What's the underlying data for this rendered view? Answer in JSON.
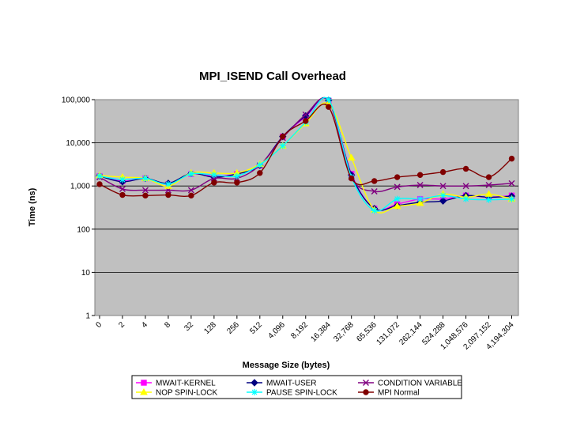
{
  "chart_data": {
    "type": "line",
    "title": "MPI_ISEND Call Overhead",
    "xlabel": "Message Size (bytes)",
    "ylabel": "Time (ns)",
    "y_scale": "log",
    "ylim": [
      1,
      100000
    ],
    "y_ticks": [
      "1",
      "10",
      "100",
      "1,000",
      "10,000",
      "100,000"
    ],
    "grid": "horizontal",
    "plot_background": "#c0c0c0",
    "legend_position": "bottom",
    "categories": [
      "0",
      "2",
      "4",
      "8",
      "32",
      "128",
      "256",
      "512",
      "4,096",
      "8,192",
      "16,384",
      "32,768",
      "65,536",
      "131,072",
      "262,144",
      "524,288",
      "1,048,576",
      "2,097,152",
      "4,194,304"
    ],
    "series": [
      {
        "name": "MWAIT-KERNEL",
        "color": "#ff00ff",
        "marker": "square",
        "values": [
          1700,
          1300,
          1500,
          1100,
          1900,
          1700,
          1900,
          3000,
          14000,
          40000,
          95000,
          1900,
          300,
          380,
          500,
          500,
          600,
          550,
          600
        ]
      },
      {
        "name": "MWAIT-USER",
        "color": "#000080",
        "marker": "diamond",
        "values": [
          1700,
          1250,
          1500,
          1150,
          1950,
          1600,
          1900,
          3000,
          14000,
          42000,
          96000,
          1800,
          300,
          350,
          420,
          450,
          600,
          550,
          580
        ]
      },
      {
        "name": "CONDITION VARIABLE",
        "color": "#800080",
        "marker": "x",
        "values": [
          1600,
          850,
          800,
          800,
          800,
          1500,
          1500,
          3000,
          13000,
          45000,
          92000,
          1600,
          750,
          950,
          1050,
          1000,
          1000,
          1050,
          1150
        ]
      },
      {
        "name": "NOP SPIN-LOCK",
        "color": "#ffff00",
        "marker": "triangle",
        "values": [
          1750,
          1600,
          1500,
          1000,
          2000,
          2000,
          2000,
          3200,
          8500,
          28000,
          80000,
          4500,
          280,
          340,
          400,
          650,
          550,
          650,
          500
        ]
      },
      {
        "name": "PAUSE SPIN-LOCK",
        "color": "#00ffff",
        "marker": "star",
        "values": [
          1700,
          1400,
          1500,
          1100,
          1900,
          1800,
          1700,
          3100,
          8500,
          30000,
          100000,
          1600,
          270,
          500,
          500,
          600,
          500,
          480,
          500
        ]
      },
      {
        "name": "MPI Normal",
        "color": "#800000",
        "marker": "circle",
        "values": [
          1100,
          620,
          600,
          620,
          600,
          1200,
          1200,
          2000,
          14000,
          32000,
          68000,
          1500,
          1300,
          1600,
          1800,
          2100,
          2500,
          1600,
          4300
        ]
      }
    ]
  }
}
